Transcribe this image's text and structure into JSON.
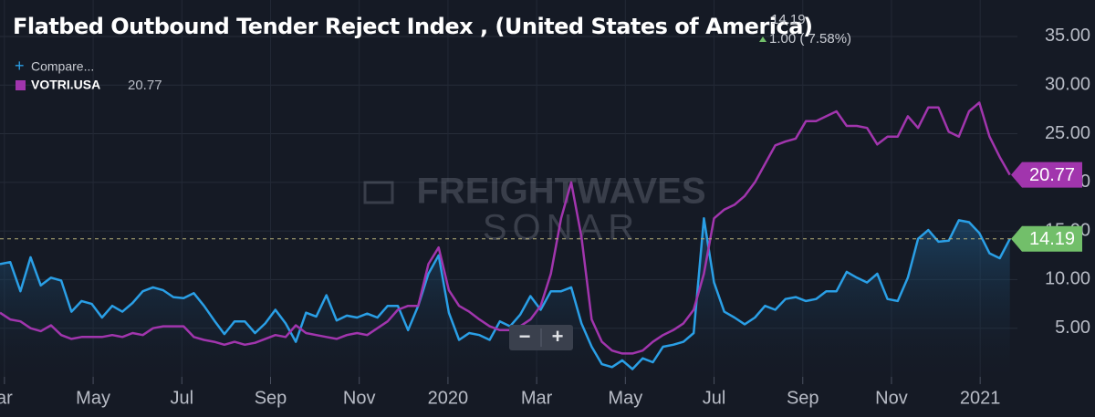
{
  "chart_data": {
    "type": "line",
    "title": "Flatbed Outbound Tender Reject Index , (United States of America)",
    "change": "1.00 ( 7.58%)",
    "compare": "Compare...",
    "watermark": [
      "FREIGHTWAVES",
      "SONAR"
    ],
    "zoom": [
      "−",
      "+"
    ],
    "x": [
      2.9,
      3.13,
      3.36,
      3.59,
      3.82,
      4.05,
      4.28,
      4.51,
      4.74,
      4.97,
      5.2,
      5.43,
      5.66,
      5.89,
      6.12,
      6.35,
      6.58,
      6.81,
      7.04,
      7.27,
      7.5,
      7.73,
      7.96,
      8.19,
      8.42,
      8.65,
      8.88,
      9.11,
      9.34,
      9.57,
      9.8,
      10.03,
      10.26,
      10.49,
      10.72,
      10.95,
      11.18,
      11.41,
      11.64,
      11.87,
      12.1,
      12.33,
      12.56,
      12.79,
      13.02,
      13.25,
      13.48,
      13.71,
      13.94,
      14.17,
      14.4,
      14.63,
      14.86,
      15.09,
      15.32,
      15.55,
      15.78,
      16.01,
      16.24,
      16.47,
      16.7,
      16.93,
      17.16,
      17.39,
      17.62,
      17.85,
      18.08,
      18.31,
      18.54,
      18.77,
      19.0,
      19.23,
      19.46,
      19.69,
      19.92,
      20.15,
      20.38,
      20.61,
      20.84,
      21.07,
      21.3,
      21.53,
      21.76,
      21.99,
      22.22,
      22.45,
      22.68,
      22.91,
      23.14,
      23.37,
      23.6,
      23.83,
      24.06,
      24.29,
      24.52,
      24.75,
      24.98,
      25.21,
      25.44,
      25.67
    ],
    "series": [
      {
        "color": "#2a9fe6",
        "area": true,
        "tag_color": "#72bf6a",
        "values": [
          11.6,
          11.8,
          8.8,
          12.3,
          9.4,
          10.2,
          9.9,
          6.7,
          7.8,
          7.5,
          6.1,
          7.3,
          6.7,
          7.6,
          8.8,
          9.2,
          8.9,
          8.2,
          8.1,
          8.6,
          7.3,
          5.8,
          4.4,
          5.7,
          5.7,
          4.5,
          5.5,
          6.9,
          5.5,
          3.6,
          6.6,
          6.2,
          8.4,
          5.8,
          6.3,
          6.1,
          6.5,
          6.1,
          7.3,
          7.3,
          4.8,
          7.3,
          10.6,
          12.5,
          6.6,
          3.8,
          4.5,
          4.3,
          3.8,
          5.7,
          5.2,
          6.4,
          8.3,
          6.9,
          8.8,
          8.8,
          9.2,
          5.5,
          3.1,
          1.3,
          1.0,
          1.7,
          0.8,
          1.9,
          1.5,
          3.1,
          3.3,
          3.6,
          4.5,
          16.3,
          9.7,
          6.7,
          6.1,
          5.4,
          6.1,
          7.3,
          6.9,
          8.0,
          8.2,
          7.8,
          8.0,
          8.8,
          8.8,
          10.8,
          10.2,
          9.7,
          10.6,
          8.0,
          7.8,
          10.2,
          14.2,
          15.1,
          13.9,
          14.0,
          16.1,
          15.9,
          14.8,
          12.7,
          12.2,
          14.19
        ]
      },
      {
        "name": "VOTRI.USA",
        "color": "#a135ad",
        "tag_color": "#a135ad",
        "values": [
          6.6,
          5.9,
          5.7,
          5.0,
          4.7,
          5.3,
          4.3,
          3.9,
          4.1,
          4.1,
          4.1,
          4.3,
          4.1,
          4.5,
          4.3,
          5.0,
          5.2,
          5.2,
          5.2,
          4.1,
          3.8,
          3.6,
          3.3,
          3.6,
          3.3,
          3.5,
          3.9,
          4.3,
          4.1,
          5.3,
          4.5,
          4.3,
          4.1,
          3.9,
          4.3,
          4.5,
          4.3,
          5.0,
          5.7,
          6.9,
          7.3,
          7.3,
          11.6,
          13.3,
          8.9,
          7.3,
          6.7,
          5.9,
          5.2,
          4.8,
          4.8,
          5.2,
          5.9,
          7.3,
          10.6,
          16.3,
          20.0,
          14.4,
          5.9,
          3.6,
          2.7,
          2.4,
          2.4,
          2.7,
          3.6,
          4.3,
          4.8,
          5.5,
          6.9,
          10.6,
          16.3,
          17.2,
          17.7,
          18.6,
          20.0,
          21.9,
          23.8,
          24.2,
          24.5,
          26.3,
          26.3,
          26.8,
          27.3,
          25.8,
          25.8,
          25.6,
          23.9,
          24.7,
          24.7,
          26.8,
          25.6,
          27.7,
          27.7,
          25.2,
          24.7,
          27.3,
          28.2,
          24.7,
          22.6,
          20.77
        ]
      }
    ],
    "xlim": [
      2.9,
      25.84
    ],
    "xticks": [
      {
        "value": 3,
        "label": "ar"
      },
      {
        "value": 5,
        "label": "May"
      },
      {
        "value": 7,
        "label": "Jul"
      },
      {
        "value": 9,
        "label": "Sep"
      },
      {
        "value": 11,
        "label": "Nov"
      },
      {
        "value": 13,
        "label": "2020"
      },
      {
        "value": 15,
        "label": "Mar"
      },
      {
        "value": 17,
        "label": "May"
      },
      {
        "value": 19,
        "label": "Jul"
      },
      {
        "value": 21,
        "label": "Sep"
      },
      {
        "value": 23,
        "label": "Nov"
      },
      {
        "value": 25,
        "label": "2021"
      }
    ],
    "ylim": [
      0,
      38.75
    ],
    "yticks": [
      {
        "value": 5,
        "label": "5.00"
      },
      {
        "value": 10,
        "label": "10.00"
      },
      {
        "value": 15,
        "label": "15.00"
      },
      {
        "value": 20,
        "label": "20.00"
      },
      {
        "value": 25,
        "label": "25.00"
      },
      {
        "value": 30,
        "label": "30.00"
      },
      {
        "value": 35,
        "label": "35.00"
      }
    ],
    "grid": true
  }
}
